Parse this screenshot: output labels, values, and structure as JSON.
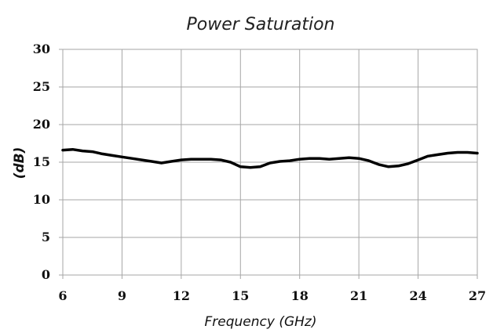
{
  "chart_data": {
    "type": "line",
    "title": "Power Saturation",
    "xlabel": "Frequency (GHz)",
    "ylabel": "(dB)",
    "xlim": [
      6,
      27
    ],
    "ylim": [
      0,
      30
    ],
    "x_ticks": [
      "6",
      "9",
      "12",
      "15",
      "18",
      "21",
      "24",
      "27"
    ],
    "y_ticks": [
      "0",
      "5",
      "10",
      "15",
      "20",
      "25",
      "30"
    ],
    "grid": true,
    "line_color": "#000000",
    "grid_color": "#a6a6a6",
    "series": [
      {
        "x": [
          6,
          6.5,
          7,
          7.5,
          8,
          8.5,
          9,
          9.5,
          10,
          10.5,
          11,
          11.5,
          12,
          12.5,
          13,
          13.5,
          14,
          14.5,
          15,
          15.5,
          16,
          16.5,
          17,
          17.5,
          18,
          18.5,
          19,
          19.5,
          20,
          20.5,
          21,
          21.5,
          22,
          22.5,
          23,
          23.5,
          24,
          24.5,
          25,
          25.5,
          26,
          26.5,
          27
        ],
        "y": [
          16.6,
          16.7,
          16.5,
          16.4,
          16.1,
          15.9,
          15.7,
          15.5,
          15.3,
          15.1,
          14.9,
          15.1,
          15.3,
          15.4,
          15.4,
          15.4,
          15.3,
          15.0,
          14.4,
          14.3,
          14.4,
          14.9,
          15.1,
          15.2,
          15.4,
          15.5,
          15.5,
          15.4,
          15.5,
          15.6,
          15.5,
          15.2,
          14.7,
          14.4,
          14.5,
          14.8,
          15.3,
          15.8,
          16.0,
          16.2,
          16.3,
          16.3,
          16.2
        ]
      }
    ]
  }
}
